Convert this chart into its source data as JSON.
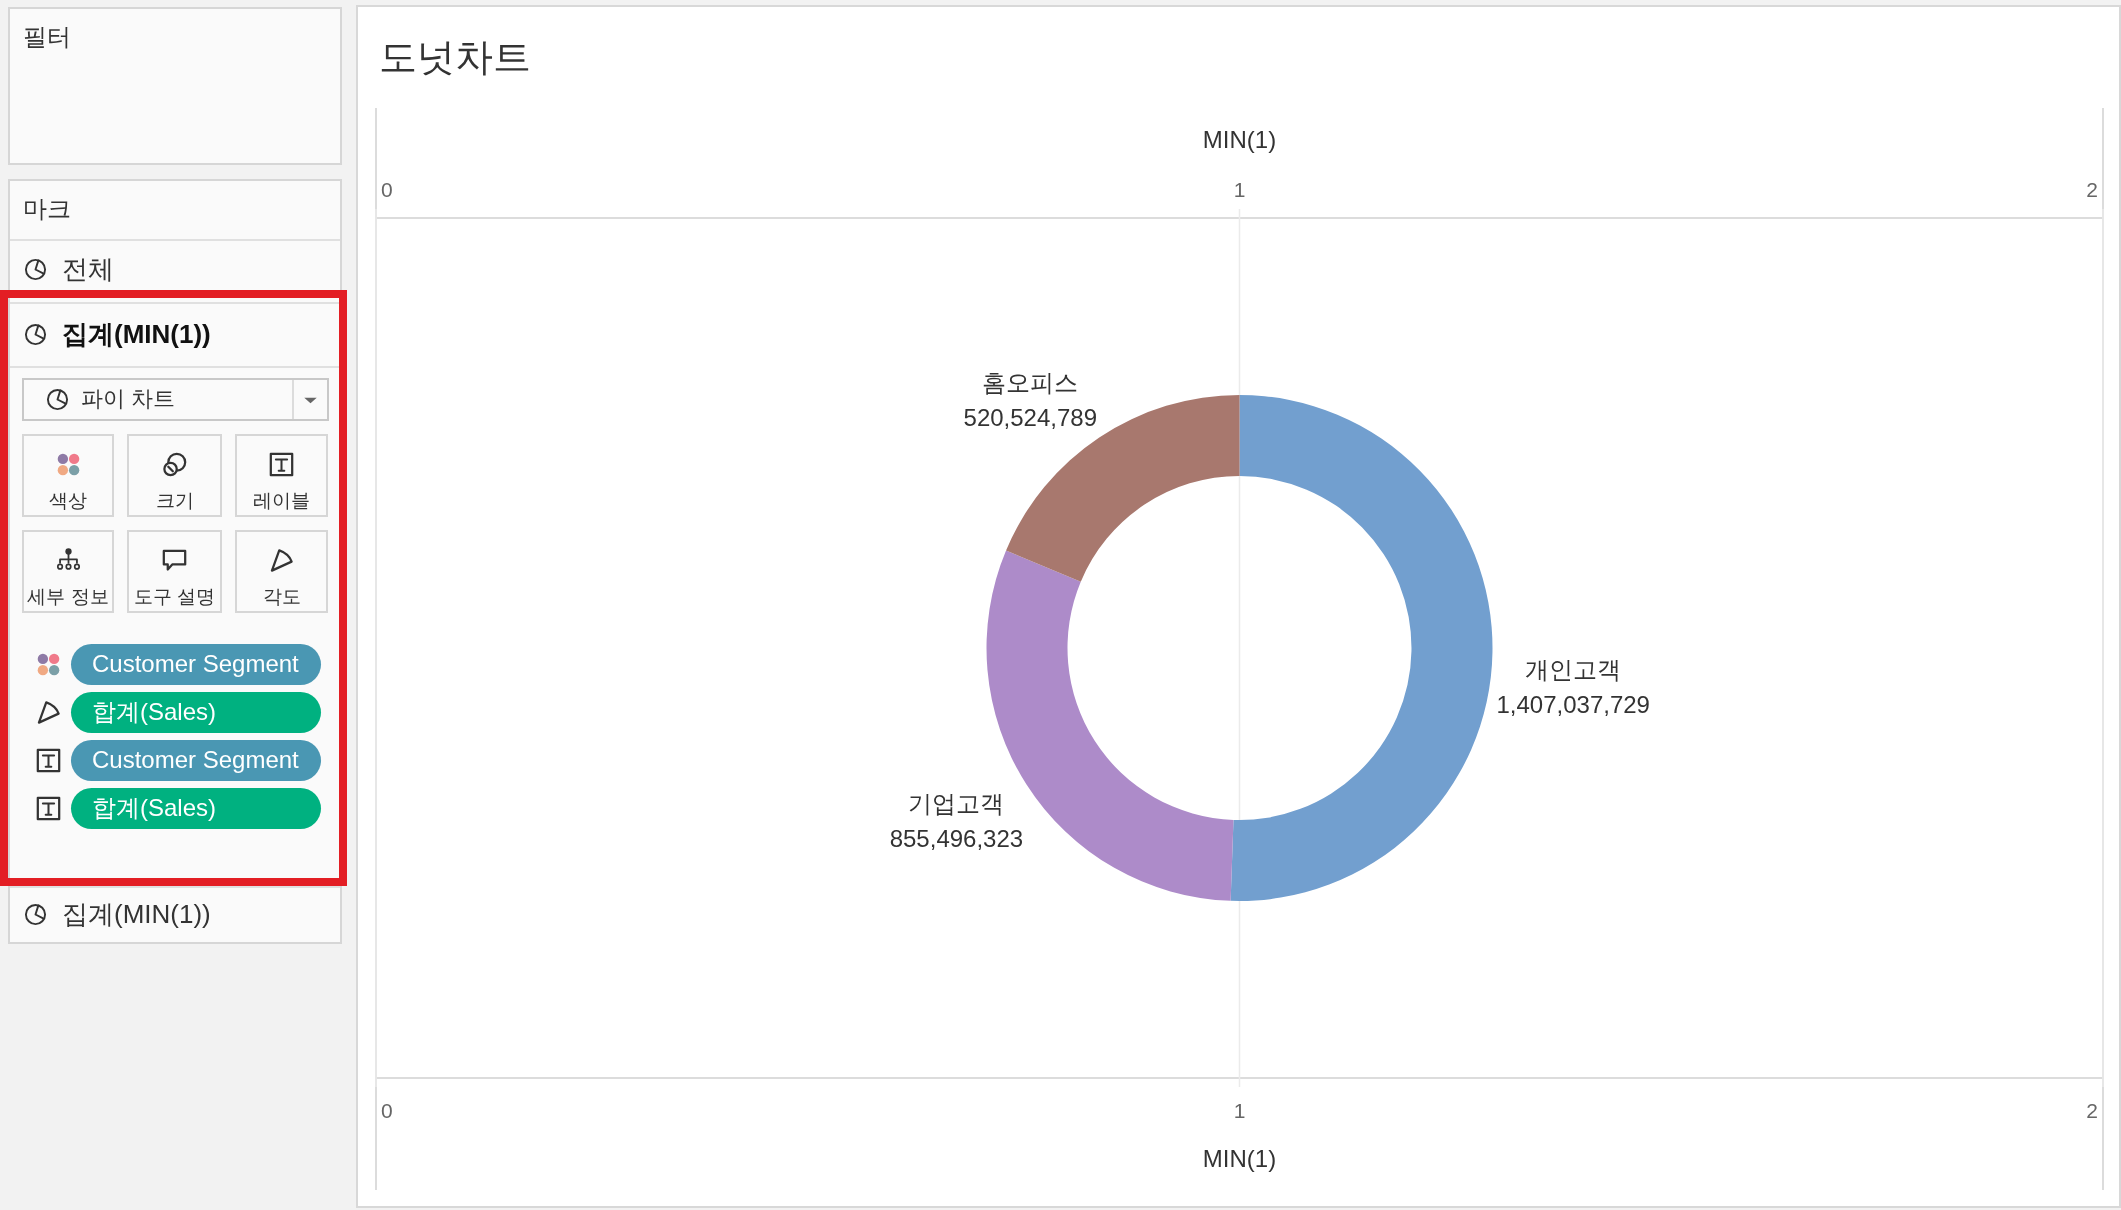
{
  "chart_data": [
    {
      "type": "other",
      "annotations": [
        "필터",
        "마크",
        "전체",
        "집계(MIN(1))",
        "파이 차트",
        "색상",
        "크기",
        "레이블",
        "세부 정보",
        "도구 설명",
        "각도",
        "Customer Segment",
        "합계(Sales)",
        "Customer Segment",
        "합계(Sales)",
        "집계(MIN(1))"
      ]
    },
    {
      "type": "donut",
      "title": "도넛차트",
      "categories": [
        "개인고객",
        "기업고객",
        "홈오피스"
      ],
      "values": [
        1407037729,
        855496323,
        520524789
      ],
      "value_labels": [
        "1,407,037,729",
        "855,496,323",
        "520,524,789"
      ],
      "colors": [
        "#729fcf",
        "#ad8bc9",
        "#a8786e"
      ],
      "x2label": "MIN(1)",
      "xlabel": "MIN(1)",
      "annotations": [
        "0",
        "1",
        "2",
        "0",
        "1",
        "2"
      ],
      "grid": "x"
    }
  ]
}
